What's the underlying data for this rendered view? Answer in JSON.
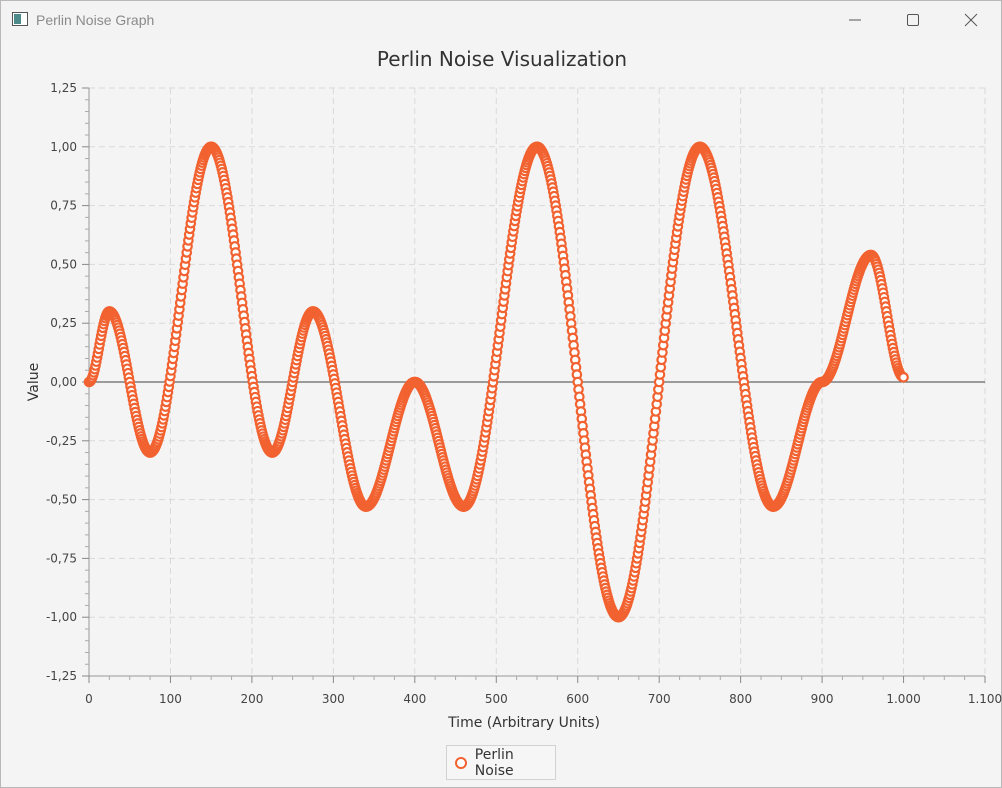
{
  "window": {
    "title": "Perlin Noise Graph",
    "icon": "app-window-icon",
    "controls": [
      "minimize-icon",
      "maximize-icon",
      "close-icon"
    ]
  },
  "chart_data": {
    "type": "scatter",
    "title": "Perlin Noise Visualization",
    "xlabel": "Time (Arbitrary Units)",
    "ylabel": "Value",
    "xlim": [
      0,
      1100
    ],
    "ylim": [
      -1.25,
      1.25
    ],
    "x_ticks": [
      0,
      100,
      200,
      300,
      400,
      500,
      600,
      700,
      800,
      900,
      1000,
      1100
    ],
    "x_tick_labels": [
      "0",
      "100",
      "200",
      "300",
      "400",
      "500",
      "600",
      "700",
      "800",
      "900",
      "1.000",
      "1.100"
    ],
    "y_ticks": [
      1.25,
      1.0,
      0.75,
      0.5,
      0.25,
      0.0,
      -0.25,
      -0.5,
      -0.75,
      -1.0,
      -1.25
    ],
    "y_tick_labels": [
      "1,25",
      "1,00",
      "0,75",
      "0,50",
      "0,25",
      "0,00",
      "-0,25",
      "-0,50",
      "-0,75",
      "-1,00",
      "-1,25"
    ],
    "grid": true,
    "legend_position": "bottom-center",
    "marker_color": "#f26230",
    "series": [
      {
        "name": "Perlin Noise",
        "x": [
          0,
          25,
          75,
          150,
          225,
          275,
          340,
          400,
          460,
          550,
          650,
          750,
          840,
          900,
          960,
          1000
        ],
        "y": [
          0.0,
          0.3,
          -0.3,
          1.0,
          -0.3,
          0.3,
          -0.53,
          0.0,
          -0.53,
          1.0,
          -1.0,
          1.0,
          -0.53,
          0.0,
          0.54,
          0.02
        ]
      }
    ]
  }
}
